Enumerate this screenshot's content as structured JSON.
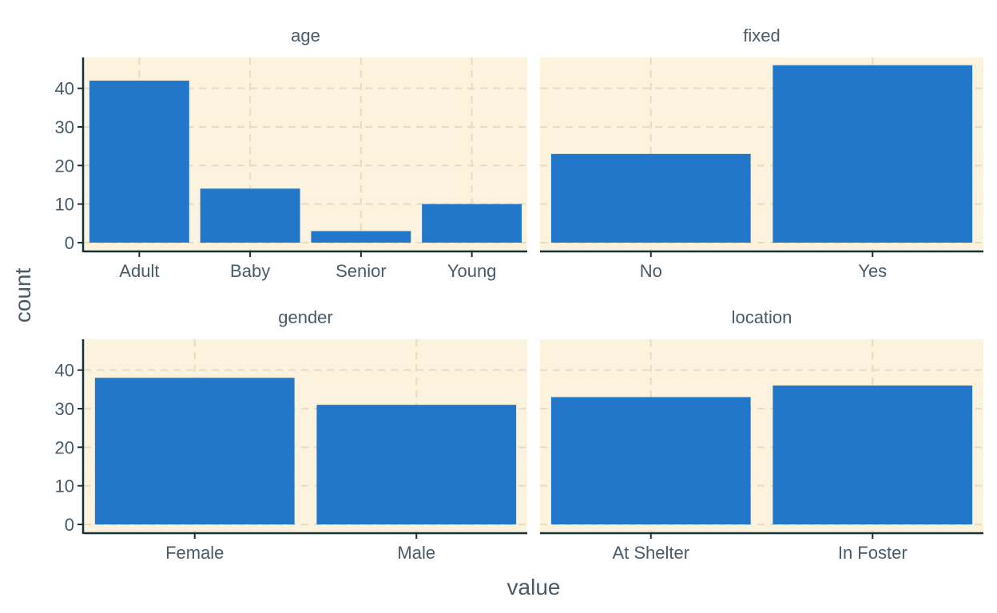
{
  "chart_data": {
    "type": "bar",
    "xlabel": "value",
    "ylabel": "count",
    "ylim": [
      0,
      48
    ],
    "yticks": [
      "0",
      "10",
      "20",
      "30",
      "40"
    ],
    "grid": "dashed",
    "colors": {
      "bar": "#2277c8",
      "panel_bg": "#fbf3dd",
      "grid": "#e8dcc0",
      "axis": "#17313b",
      "text": "#4a5a66"
    },
    "facets": [
      {
        "title": "age",
        "categories": [
          "Adult",
          "Baby",
          "Senior",
          "Young"
        ],
        "values": [
          42,
          14,
          3,
          10
        ]
      },
      {
        "title": "fixed",
        "categories": [
          "No",
          "Yes"
        ],
        "values": [
          23,
          46
        ]
      },
      {
        "title": "gender",
        "categories": [
          "Female",
          "Male"
        ],
        "values": [
          38,
          31
        ]
      },
      {
        "title": "location",
        "categories": [
          "At Shelter",
          "In Foster"
        ],
        "values": [
          33,
          36
        ]
      }
    ]
  }
}
